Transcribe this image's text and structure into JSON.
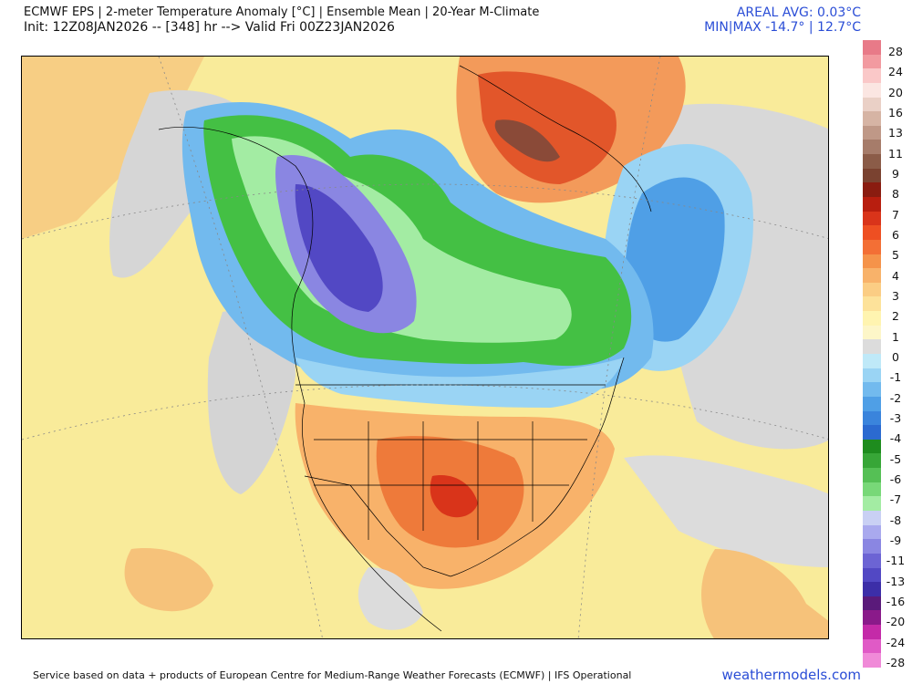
{
  "header": {
    "title": "ECMWF EPS | 2-meter Temperature Anomaly [°C] | Ensemble Mean | 20-Year M-Climate",
    "init": "Init: 12Z08JAN2026 -- [348] hr --> Valid Fri 00Z23JAN2026",
    "areal_avg": "AREAL AVG: 0.03°C",
    "min_max": "MIN|MAX -14.7° | 12.7°C"
  },
  "colorbar": {
    "labels": [
      "28",
      "24",
      "20",
      "16",
      "13",
      "11",
      "9",
      "8",
      "7",
      "6",
      "5",
      "4",
      "3",
      "2",
      "1",
      "0",
      "-1",
      "-2",
      "-3",
      "-4",
      "-5",
      "-6",
      "-7",
      "-8",
      "-9",
      "-11",
      "-13",
      "-16",
      "-20",
      "-24",
      "-28"
    ],
    "colors": [
      "#e87a88",
      "#f29aa0",
      "#fac8c8",
      "#fbe6e2",
      "#ead0c6",
      "#d6b4a4",
      "#bf9887",
      "#a67c6a",
      "#8b5c48",
      "#7a4230",
      "#8a1c10",
      "#b81e0f",
      "#d9341a",
      "#ee4f22",
      "#f36f35",
      "#f5934a",
      "#f8b26a",
      "#fbcd84",
      "#fde29a",
      "#fff4b0",
      "#fdf6c8",
      "#dcdcdc",
      "#bfe9f8",
      "#9ad4f4",
      "#72baee",
      "#4f9fe6",
      "#3a84dc",
      "#2b6ad0",
      "#1e8c1e",
      "#37a637",
      "#55c055",
      "#78d878",
      "#a3eca3",
      "#c9d0f4",
      "#a9a9ee",
      "#8a86e2",
      "#6c64d4",
      "#5248c4",
      "#3c2ea8",
      "#5a1a7a",
      "#8a1a8a",
      "#c42aa8",
      "#e05ac6",
      "#f08ad8"
    ]
  },
  "map": {
    "legend_colors": {
      "ocean_gray": "#cfcfcf",
      "warm_light": "#f9eb9a",
      "warm_mid": "#f6b26b",
      "warm_strong": "#ee7a3a",
      "cold_blue": "#5d9fe6",
      "cold_green": "#44c044",
      "cold_purple": "#6c62d6"
    }
  },
  "footer": {
    "credit": "Service based on data + products of European Centre for Medium-Range Weather Forecasts (ECMWF) | IFS Operational",
    "brand": "weathermodels.com"
  }
}
